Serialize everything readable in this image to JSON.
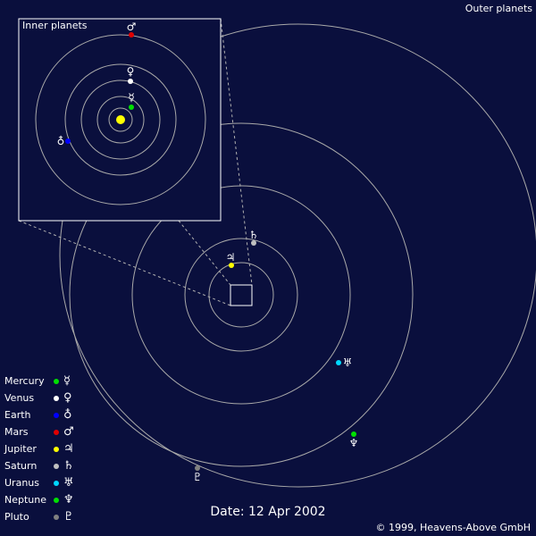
{
  "header": {
    "outer_title": "Outer planets",
    "inner_title": "Inner planets"
  },
  "footer": {
    "date": "Date: 12 Apr 2002",
    "copyright": "© 1999, Heavens-Above GmbH"
  },
  "colors": {
    "background": "#0a0f3d",
    "orbit": "#a9a9a9",
    "sun": "#ffff00",
    "mercury": "#00e000",
    "venus": "#ffffff",
    "earth": "#0000ff",
    "mars": "#e00000",
    "jupiter": "#ffff00",
    "saturn": "#c0c0c0",
    "uranus": "#00d8ff",
    "neptune": "#00e000",
    "pluto": "#808080"
  },
  "legend": [
    {
      "name": "Mercury",
      "symbol": "☿",
      "color": "#00e000"
    },
    {
      "name": "Venus",
      "symbol": "♀",
      "color": "#ffffff"
    },
    {
      "name": "Earth",
      "symbol": "♁",
      "color": "#0000ff"
    },
    {
      "name": "Mars",
      "symbol": "♂",
      "color": "#e00000"
    },
    {
      "name": "Jupiter",
      "symbol": "♃",
      "color": "#ffff00"
    },
    {
      "name": "Saturn",
      "symbol": "♄",
      "color": "#c0c0c0"
    },
    {
      "name": "Uranus",
      "symbol": "♅",
      "color": "#00d8ff"
    },
    {
      "name": "Neptune",
      "symbol": "♆",
      "color": "#00e000"
    },
    {
      "name": "Pluto",
      "symbol": "♇",
      "color": "#808080"
    }
  ],
  "outer_planets": [
    {
      "name": "Jupiter",
      "symbol": "♃",
      "color": "#ffff00"
    },
    {
      "name": "Saturn",
      "symbol": "♄",
      "color": "#c0c0c0"
    },
    {
      "name": "Uranus",
      "symbol": "♅",
      "color": "#00d8ff"
    },
    {
      "name": "Neptune",
      "symbol": "♆",
      "color": "#00e000"
    },
    {
      "name": "Pluto",
      "symbol": "♇",
      "color": "#808080"
    }
  ],
  "inner_planets": [
    {
      "name": "Mercury",
      "symbol": "☿",
      "color": "#00e000"
    },
    {
      "name": "Venus",
      "symbol": "♀",
      "color": "#ffffff"
    },
    {
      "name": "Earth",
      "symbol": "♁",
      "color": "#0000ff"
    },
    {
      "name": "Mars",
      "symbol": "♂",
      "color": "#e00000"
    }
  ]
}
